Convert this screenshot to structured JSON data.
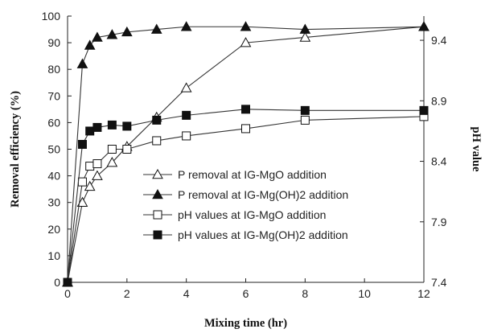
{
  "chart_data": {
    "type": "line",
    "xlabel": "Mixing time (hr)",
    "ylabel_left": "Removal efficiency (%)",
    "ylabel_right": "pH value",
    "xlim": [
      0,
      12
    ],
    "x_ticks": [
      "0",
      "2",
      "4",
      "6",
      "8",
      "10",
      "12"
    ],
    "ylim_left": [
      0,
      100
    ],
    "y_ticks_left": [
      "0",
      "10",
      "20",
      "30",
      "40",
      "50",
      "60",
      "70",
      "80",
      "90",
      "100"
    ],
    "ylim_right": [
      7.4,
      9.6
    ],
    "y_ticks_right": [
      "7.4",
      "7.9",
      "8.4",
      "8.9",
      "9.4"
    ],
    "grid": false,
    "legend_position": "center-right",
    "series": [
      {
        "name": "P removal at IG-MgO addition",
        "axis": "left",
        "marker": "triangle-open",
        "x": [
          0,
          0.5,
          0.75,
          1,
          1.5,
          2,
          3,
          4,
          6,
          8,
          12
        ],
        "y": [
          0,
          30,
          36,
          40,
          45,
          51,
          62,
          73,
          90,
          92,
          96
        ]
      },
      {
        "name": "P removal at IG-Mg(OH)2 addition",
        "axis": "left",
        "marker": "triangle-filled",
        "x": [
          0,
          0.5,
          0.75,
          1,
          1.5,
          2,
          3,
          4,
          6,
          8,
          12
        ],
        "y": [
          0,
          82,
          89,
          92,
          93,
          94,
          95,
          96,
          96,
          95,
          96
        ]
      },
      {
        "name": "pH values at IG-MgO addition",
        "axis": "right",
        "marker": "square-open",
        "x": [
          0,
          0.5,
          0.75,
          1,
          1.5,
          2,
          3,
          4,
          6,
          8,
          12
        ],
        "y": [
          7.4,
          8.23,
          8.36,
          8.38,
          8.5,
          8.5,
          8.57,
          8.61,
          8.67,
          8.74,
          8.77
        ]
      },
      {
        "name": "pH values at IG-Mg(OH)2 addition",
        "axis": "right",
        "marker": "square-filled",
        "x": [
          0,
          0.5,
          0.75,
          1,
          1.5,
          2,
          3,
          4,
          6,
          8,
          12
        ],
        "y": [
          7.4,
          8.54,
          8.65,
          8.68,
          8.7,
          8.69,
          8.74,
          8.78,
          8.83,
          8.82,
          8.82
        ]
      }
    ]
  }
}
